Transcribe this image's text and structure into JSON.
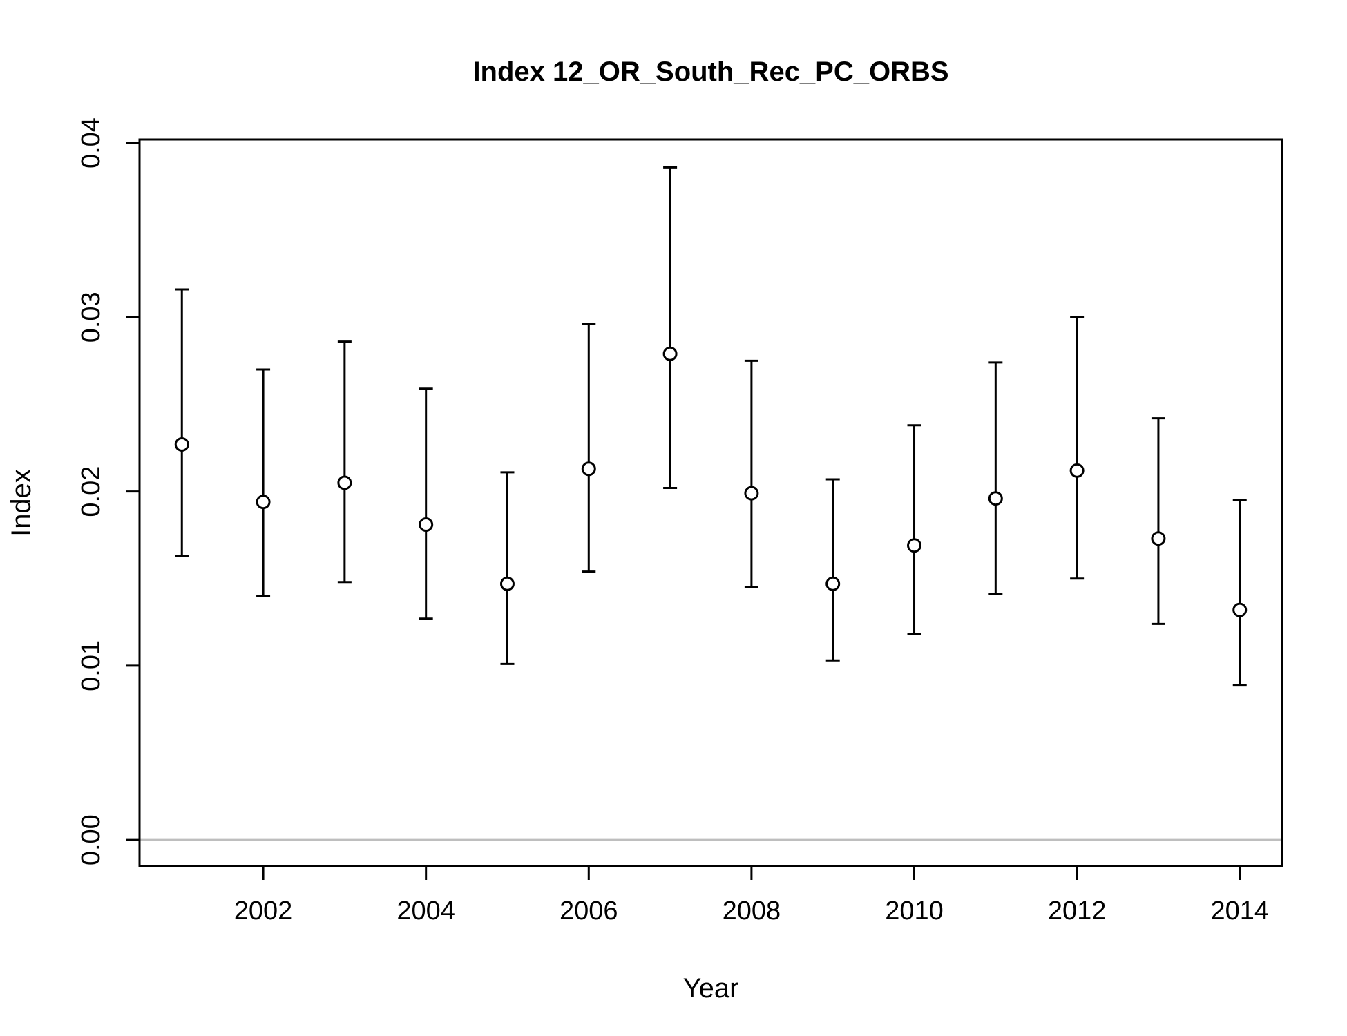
{
  "chart_data": {
    "type": "scatter",
    "title": "Index 12_OR_South_Rec_PC_ORBS",
    "xlabel": "Year",
    "ylabel": "Index",
    "xlim": [
      2000.48,
      2014.52
    ],
    "ylim": [
      -0.0015,
      0.0402
    ],
    "x_ticks": [
      2002,
      2004,
      2006,
      2008,
      2010,
      2012,
      2014
    ],
    "x_tick_labels": [
      "2002",
      "2004",
      "2006",
      "2008",
      "2010",
      "2012",
      "2014"
    ],
    "y_ticks": [
      0,
      0.01,
      0.02,
      0.03,
      0.04
    ],
    "y_tick_labels": [
      "0.00",
      "0.01",
      "0.02",
      "0.03",
      "0.04"
    ],
    "reference_line": 0,
    "reference_line_color": "#bebebe",
    "grid": false,
    "points": [
      {
        "year": 2001,
        "index": 0.0227,
        "lower": 0.0163,
        "upper": 0.0316
      },
      {
        "year": 2002,
        "index": 0.0194,
        "lower": 0.014,
        "upper": 0.027
      },
      {
        "year": 2003,
        "index": 0.0205,
        "lower": 0.0148,
        "upper": 0.0286
      },
      {
        "year": 2004,
        "index": 0.0181,
        "lower": 0.0127,
        "upper": 0.0259
      },
      {
        "year": 2005,
        "index": 0.0147,
        "lower": 0.0101,
        "upper": 0.0211
      },
      {
        "year": 2006,
        "index": 0.0213,
        "lower": 0.0154,
        "upper": 0.0296
      },
      {
        "year": 2007,
        "index": 0.0279,
        "lower": 0.0202,
        "upper": 0.0386
      },
      {
        "year": 2008,
        "index": 0.0199,
        "lower": 0.0145,
        "upper": 0.0275
      },
      {
        "year": 2009,
        "index": 0.0147,
        "lower": 0.0103,
        "upper": 0.0207
      },
      {
        "year": 2010,
        "index": 0.0169,
        "lower": 0.0118,
        "upper": 0.0238
      },
      {
        "year": 2011,
        "index": 0.0196,
        "lower": 0.0141,
        "upper": 0.0274
      },
      {
        "year": 2012,
        "index": 0.0212,
        "lower": 0.015,
        "upper": 0.03
      },
      {
        "year": 2013,
        "index": 0.0173,
        "lower": 0.0124,
        "upper": 0.0242
      },
      {
        "year": 2014,
        "index": 0.0132,
        "lower": 0.0089,
        "upper": 0.0195
      }
    ]
  }
}
